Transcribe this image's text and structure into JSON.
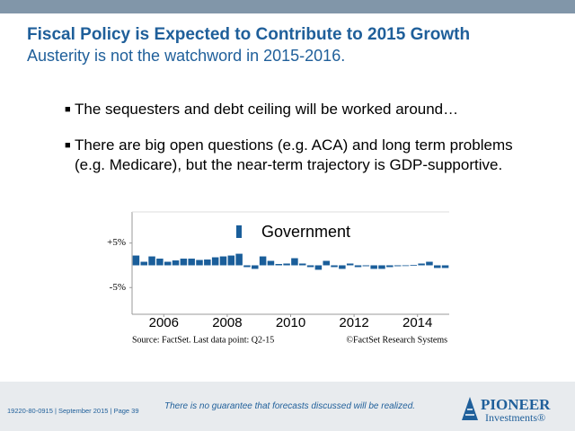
{
  "slide": {
    "title": "Fiscal Policy is Expected to Contribute to 2015 Growth",
    "subtitle": "Austerity is not the watchword in 2015-2016.",
    "bullets": [
      [
        "The sequesters and debt ceiling will be worked around…"
      ],
      [
        "There are big open questions (e.g. ACA) and long term problems",
        "(e.g. Medicare), but the near-term trajectory is GDP-supportive."
      ]
    ],
    "source": "Source: FactSet. Last data point: Q2-15",
    "copyright": "©FactSet Research Systems",
    "footer_code": "19220-80-0915 | September 2015 | Page 39",
    "disclaimer": "There is no guarantee that forecasts discussed will be realized.",
    "logo": [
      "PIONEER",
      "Investments®"
    ]
  },
  "chart_data": {
    "type": "bar",
    "series": [
      {
        "name": "Government",
        "color": "#1a5e9a",
        "x": [
          2005.125,
          2005.375,
          2005.625,
          2005.875,
          2006.125,
          2006.375,
          2006.625,
          2006.875,
          2007.125,
          2007.375,
          2007.625,
          2007.875,
          2008.125,
          2008.375,
          2008.625,
          2008.875,
          2009.125,
          2009.375,
          2009.625,
          2009.875,
          2010.125,
          2010.375,
          2010.625,
          2010.875,
          2011.125,
          2011.375,
          2011.625,
          2011.875,
          2012.125,
          2012.375,
          2012.625,
          2012.875,
          2013.125,
          2013.375,
          2013.625,
          2013.875,
          2014.125,
          2014.375,
          2014.625,
          2014.875
        ],
        "values": [
          2.2,
          0.8,
          2,
          1.5,
          0.8,
          1.1,
          1.5,
          1.5,
          1.2,
          1.3,
          1.8,
          2,
          2.2,
          2.6,
          -0.4,
          -0.8,
          2,
          1,
          0.3,
          0.4,
          1.6,
          0.4,
          -0.4,
          -1,
          1,
          -0.4,
          -0.8,
          0.4,
          -0.4,
          -0.2,
          -0.8,
          -0.8,
          -0.4,
          -0.2,
          -0.1,
          0.1,
          0.4,
          0.8,
          -0.6,
          -0.6
        ]
      }
    ],
    "xlim": [
      2005,
      2015
    ],
    "xticks": [
      2006,
      2008,
      2010,
      2012,
      2014
    ],
    "ylim": [
      -11,
      12
    ],
    "yticks": [
      {
        "value": 5,
        "label": "+5%"
      },
      {
        "value": -5,
        "label": "-5%"
      }
    ],
    "legend": "top"
  }
}
